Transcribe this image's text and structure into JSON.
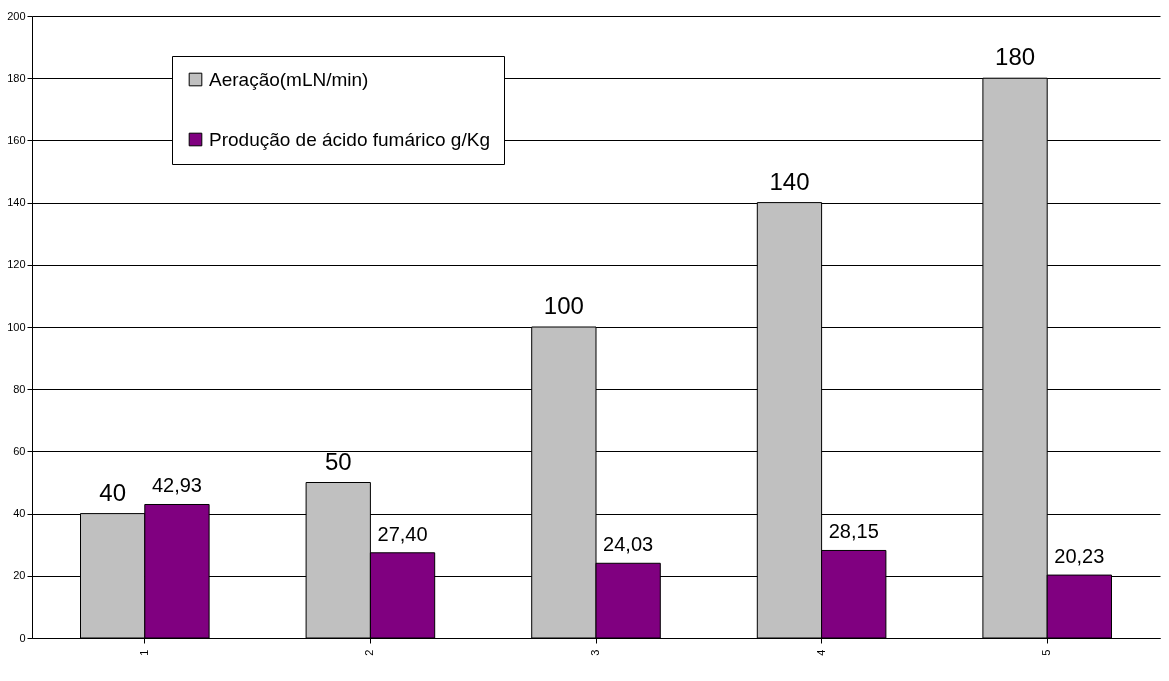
{
  "chart_data": {
    "type": "bar",
    "categories": [
      "1",
      "2",
      "3",
      "4",
      "5"
    ],
    "series": [
      {
        "name": "Aeração(mLN/min)",
        "color": "#c0c0c0",
        "values": [
          40,
          50,
          100,
          140,
          180
        ],
        "value_labels": [
          "40",
          "50",
          "100",
          "140",
          "180"
        ]
      },
      {
        "name": "Produção de ácido fumárico g/Kg",
        "color": "#800080",
        "values": [
          42.93,
          27.4,
          24.03,
          28.15,
          20.23
        ],
        "value_labels": [
          "42,93",
          "27,40",
          "24,03",
          "28,15",
          "20,23"
        ]
      }
    ],
    "ylim": [
      0,
      200
    ],
    "yticks": [
      0,
      20,
      40,
      60,
      80,
      100,
      120,
      140,
      160,
      180,
      200
    ],
    "grid": "y",
    "legend": "top left"
  }
}
